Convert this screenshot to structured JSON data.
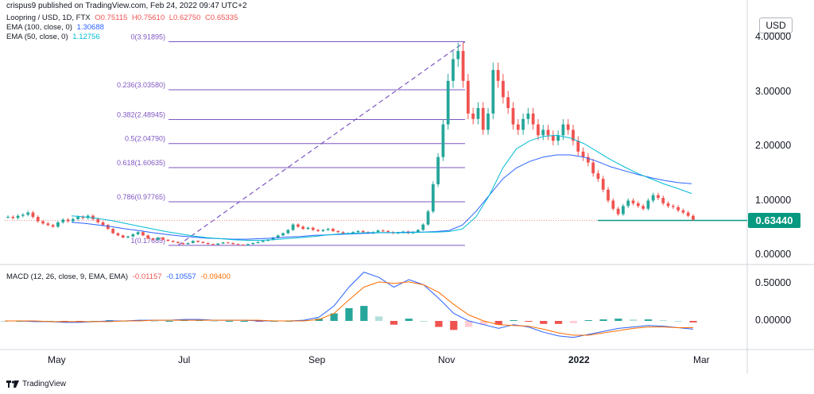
{
  "header": "crispus9 published on TradingView.com, Feb 24, 2022 09:47 UTC+2",
  "ohlc": {
    "symbol": "Loopring / USD, 1D, FTX",
    "open": "O0.75115",
    "high": "H0.75610",
    "low": "L0.62750",
    "close": "C0.65335"
  },
  "indicators": [
    {
      "label": "EMA (100, close, 0)",
      "value": "1.30688",
      "color": "#2962ff"
    },
    {
      "label": "EMA (50, close, 0)",
      "value": "1.12756",
      "color": "#00bcd4"
    }
  ],
  "macd_legend": {
    "label": "MACD (12, 26, close, 9, EMA, EMA)",
    "hist": "-0.01157",
    "macd": "-0.10557",
    "signal": "-0.09400"
  },
  "currency": "USD",
  "current_price": "0.63440",
  "footer_brand": "TradingView",
  "colors": {
    "up": "#26a69a",
    "down": "#ef5350",
    "fib": "#7e57c2",
    "ema100": "#2962ff",
    "ema50": "#00bcd4",
    "macd": "#2962ff",
    "signal": "#ff6d00",
    "price_label": "#089981"
  },
  "chart_data": {
    "type": "line",
    "price_axis": {
      "ticks": [
        "4.00000",
        "3.00000",
        "2.00000",
        "1.00000",
        "0.00000"
      ],
      "tick_values": [
        4,
        3,
        2,
        1,
        0
      ],
      "scale": "linear"
    },
    "macd_axis": {
      "ticks": [
        "0.50000",
        "0.00000"
      ],
      "tick_values": [
        0.5,
        0
      ]
    },
    "x_ticks": [
      {
        "label": "May",
        "bold": false
      },
      {
        "label": "Jul",
        "bold": false
      },
      {
        "label": "Sep",
        "bold": false
      },
      {
        "label": "Nov",
        "bold": false
      },
      {
        "label": "2022",
        "bold": true
      },
      {
        "label": "Mar",
        "bold": false
      }
    ],
    "fib_levels": [
      {
        "label": "0(3.91895)",
        "value": 3.91895
      },
      {
        "label": "0.236(3.03580)",
        "value": 3.0358
      },
      {
        "label": "0.382(2.48945)",
        "value": 2.48945
      },
      {
        "label": "0.5(2.04790)",
        "value": 2.0479
      },
      {
        "label": "0.618(1.60635)",
        "value": 1.60635
      },
      {
        "label": "0.786(0.97765)",
        "value": 0.97765
      },
      {
        "label": "1(0.17685)",
        "value": 0.17685
      }
    ],
    "horizontal_line": 0.6344,
    "price_series": [
      0.7,
      0.68,
      0.72,
      0.74,
      0.78,
      0.7,
      0.62,
      0.58,
      0.55,
      0.52,
      0.6,
      0.65,
      0.62,
      0.66,
      0.7,
      0.68,
      0.72,
      0.66,
      0.6,
      0.55,
      0.48,
      0.4,
      0.36,
      0.32,
      0.34,
      0.38,
      0.42,
      0.36,
      0.3,
      0.28,
      0.32,
      0.28,
      0.26,
      0.24,
      0.22,
      0.2,
      0.22,
      0.26,
      0.24,
      0.22,
      0.2,
      0.19,
      0.21,
      0.23,
      0.22,
      0.2,
      0.19,
      0.18,
      0.2,
      0.22,
      0.24,
      0.26,
      0.28,
      0.32,
      0.36,
      0.4,
      0.46,
      0.56,
      0.52,
      0.48,
      0.5,
      0.46,
      0.44,
      0.46,
      0.48,
      0.44,
      0.42,
      0.4,
      0.4,
      0.42,
      0.44,
      0.42,
      0.4,
      0.42,
      0.45,
      0.44,
      0.42,
      0.4,
      0.41,
      0.43,
      0.4,
      0.42,
      0.46,
      0.56,
      0.8,
      1.3,
      1.8,
      2.4,
      3.2,
      3.6,
      3.75,
      3.2,
      2.6,
      2.5,
      2.7,
      2.3,
      2.6,
      3.4,
      3.2,
      2.9,
      2.7,
      2.4,
      2.3,
      2.5,
      2.6,
      2.4,
      2.2,
      2.3,
      2.2,
      2.1,
      2.2,
      2.4,
      2.3,
      2.1,
      1.9,
      1.8,
      1.7,
      1.5,
      1.4,
      1.2,
      1.0,
      0.85,
      0.75,
      0.9,
      1.0,
      0.95,
      0.9,
      0.85,
      1.0,
      1.1,
      1.05,
      0.95,
      0.9,
      0.88,
      0.82,
      0.78,
      0.72,
      0.65
    ],
    "ema50_series": [
      0.72,
      0.7,
      0.67,
      0.63,
      0.58,
      0.53,
      0.48,
      0.43,
      0.39,
      0.35,
      0.32,
      0.3,
      0.28,
      0.27,
      0.27,
      0.28,
      0.3,
      0.32,
      0.34,
      0.37,
      0.39,
      0.4,
      0.41,
      0.41,
      0.41,
      0.41,
      0.42,
      0.42,
      0.43,
      0.48,
      0.7,
      1.1,
      1.6,
      1.95,
      2.1,
      2.18,
      2.2,
      2.15,
      2.05,
      1.9,
      1.75,
      1.62,
      1.5,
      1.4,
      1.3,
      1.22,
      1.13
    ],
    "ema100_series": [
      0.6,
      0.58,
      0.55,
      0.52,
      0.48,
      0.45,
      0.41,
      0.38,
      0.35,
      0.33,
      0.31,
      0.3,
      0.29,
      0.29,
      0.3,
      0.31,
      0.33,
      0.34,
      0.36,
      0.37,
      0.38,
      0.39,
      0.4,
      0.41,
      0.41,
      0.42,
      0.42,
      0.43,
      0.45,
      0.55,
      0.8,
      1.1,
      1.4,
      1.6,
      1.72,
      1.8,
      1.84,
      1.84,
      1.8,
      1.72,
      1.62,
      1.55,
      1.48,
      1.42,
      1.37,
      1.33,
      1.31
    ],
    "macd_series": [
      0.0,
      0.0,
      -0.01,
      -0.01,
      -0.02,
      -0.02,
      -0.01,
      0.0,
      0.0,
      0.01,
      0.01,
      0.01,
      0.02,
      0.02,
      0.01,
      0.01,
      0.01,
      0.0,
      0.0,
      0.0,
      0.01,
      0.05,
      0.2,
      0.45,
      0.65,
      0.58,
      0.45,
      0.55,
      0.48,
      0.3,
      0.1,
      0.0,
      -0.05,
      -0.1,
      -0.05,
      -0.08,
      -0.15,
      -0.2,
      -0.22,
      -0.18,
      -0.14,
      -0.1,
      -0.08,
      -0.06,
      -0.07,
      -0.09,
      -0.11
    ],
    "signal_series": [
      0.0,
      0.0,
      0.0,
      -0.01,
      -0.01,
      -0.01,
      -0.01,
      -0.01,
      0.0,
      0.0,
      0.01,
      0.01,
      0.01,
      0.01,
      0.01,
      0.01,
      0.01,
      0.01,
      0.0,
      0.0,
      0.0,
      0.02,
      0.1,
      0.28,
      0.45,
      0.52,
      0.5,
      0.52,
      0.48,
      0.38,
      0.22,
      0.08,
      0.0,
      -0.05,
      -0.06,
      -0.07,
      -0.11,
      -0.16,
      -0.19,
      -0.19,
      -0.16,
      -0.13,
      -0.1,
      -0.08,
      -0.08,
      -0.09,
      -0.09
    ]
  }
}
